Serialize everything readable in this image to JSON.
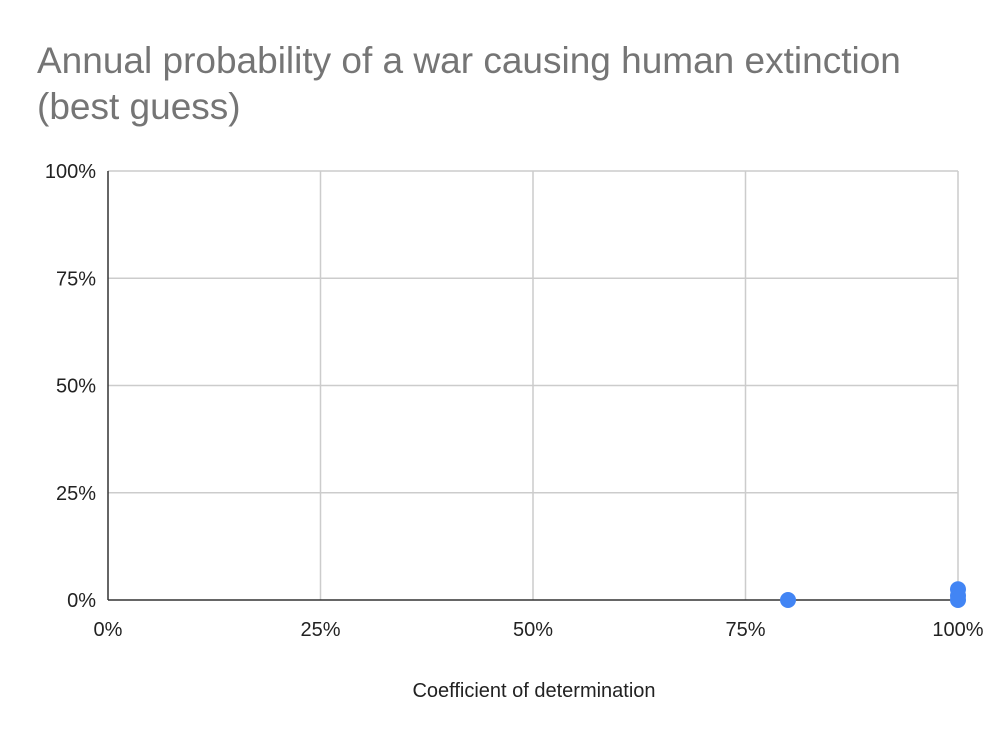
{
  "chart_data": {
    "type": "scatter",
    "title": "Annual probability of a war causing human extinction (best guess)",
    "xlabel": "Coefficient of determination",
    "ylabel": "",
    "xlim": [
      0,
      1
    ],
    "ylim": [
      0,
      1
    ],
    "x_ticks": [
      "0%",
      "25%",
      "50%",
      "75%",
      "100%"
    ],
    "y_ticks": [
      "0%",
      "25%",
      "50%",
      "75%",
      "100%"
    ],
    "grid": true,
    "legend": "none",
    "series": [
      {
        "color": "#4285f4",
        "points": [
          {
            "x": 0.8,
            "y": 0.0
          },
          {
            "x": 1.0,
            "y": 0.025
          },
          {
            "x": 1.0,
            "y": 0.01
          },
          {
            "x": 1.0,
            "y": 0.0
          }
        ]
      }
    ]
  }
}
